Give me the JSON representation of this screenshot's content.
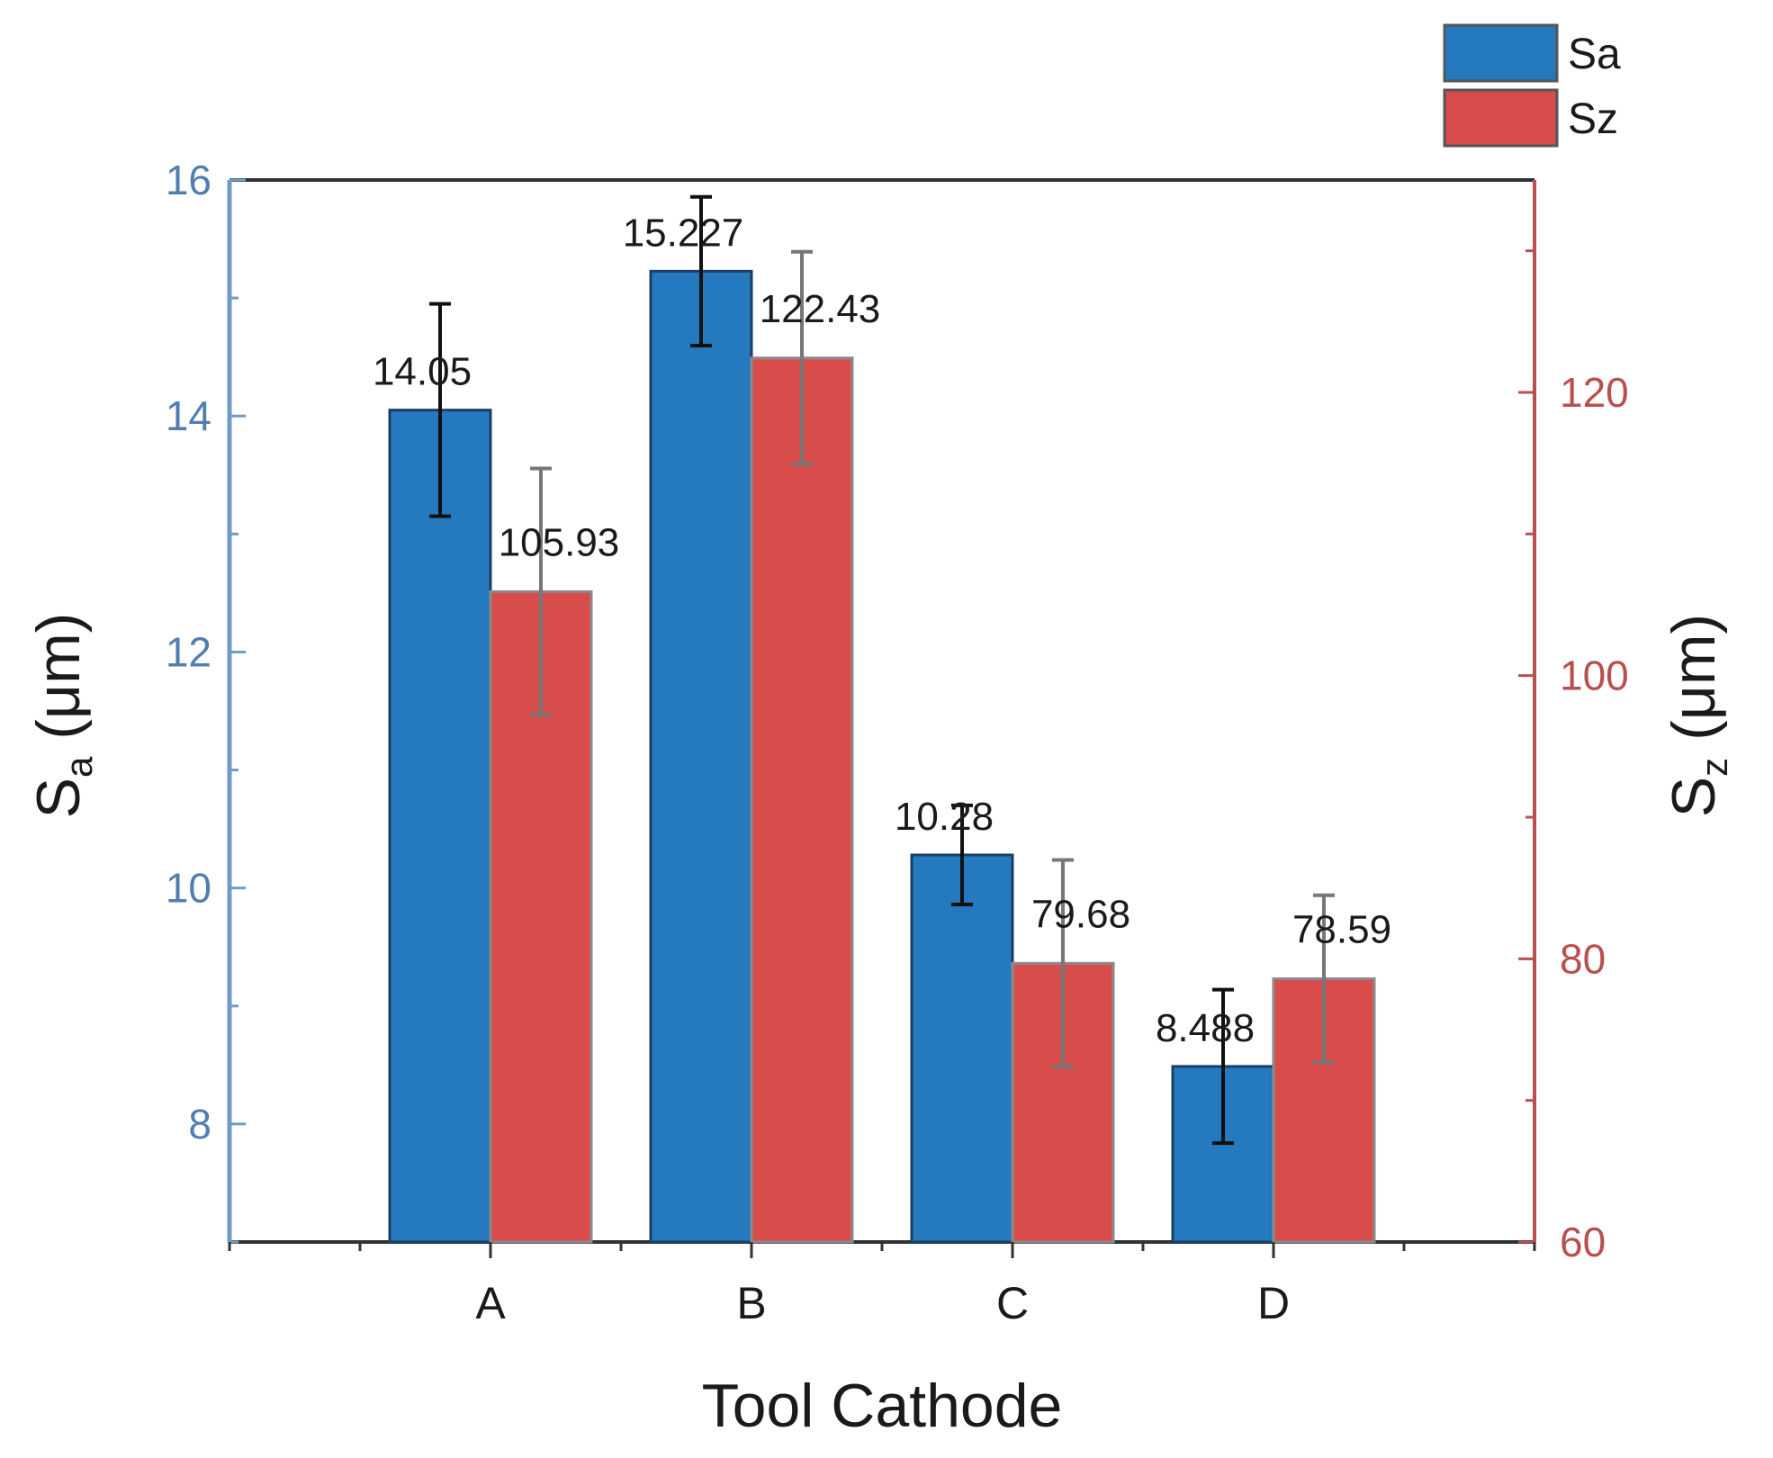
{
  "chart_data": {
    "type": "bar",
    "categories": [
      "A",
      "B",
      "C",
      "D"
    ],
    "xlabel": "Tool Cathode",
    "ylabel_left": {
      "main": "S",
      "sub": "a",
      "unit": " (μm)"
    },
    "ylabel_right": {
      "main": "S",
      "sub": "z",
      "unit": " (μm)"
    },
    "ylim_left": [
      7,
      16
    ],
    "ylim_right": [
      60,
      135
    ],
    "left_ticks": [
      8,
      10,
      12,
      14,
      16
    ],
    "right_ticks": [
      60,
      80,
      100,
      120
    ],
    "series": [
      {
        "name": "Sa",
        "axis": "left",
        "color": "#2579be",
        "values": [
          14.05,
          15.227,
          10.28,
          8.488
        ],
        "errors": [
          0.9,
          0.63,
          0.42,
          0.65
        ],
        "labels": [
          "14.05",
          "15.227",
          "10.28",
          "8.488"
        ]
      },
      {
        "name": "Sz",
        "axis": "right",
        "color": "#d94c4c",
        "values": [
          105.93,
          122.43,
          79.68,
          78.59
        ],
        "errors": [
          8.7,
          7.5,
          7.3,
          5.9
        ],
        "labels": [
          "105.93",
          "122.43",
          "79.68",
          "78.59"
        ]
      }
    ],
    "legend": {
      "position": "top-right",
      "entries": [
        "Sa",
        "Sz"
      ]
    },
    "colors": {
      "left_axis": "#6f9bc6",
      "right_axis": "#b8504f",
      "frame": "#333333"
    }
  }
}
